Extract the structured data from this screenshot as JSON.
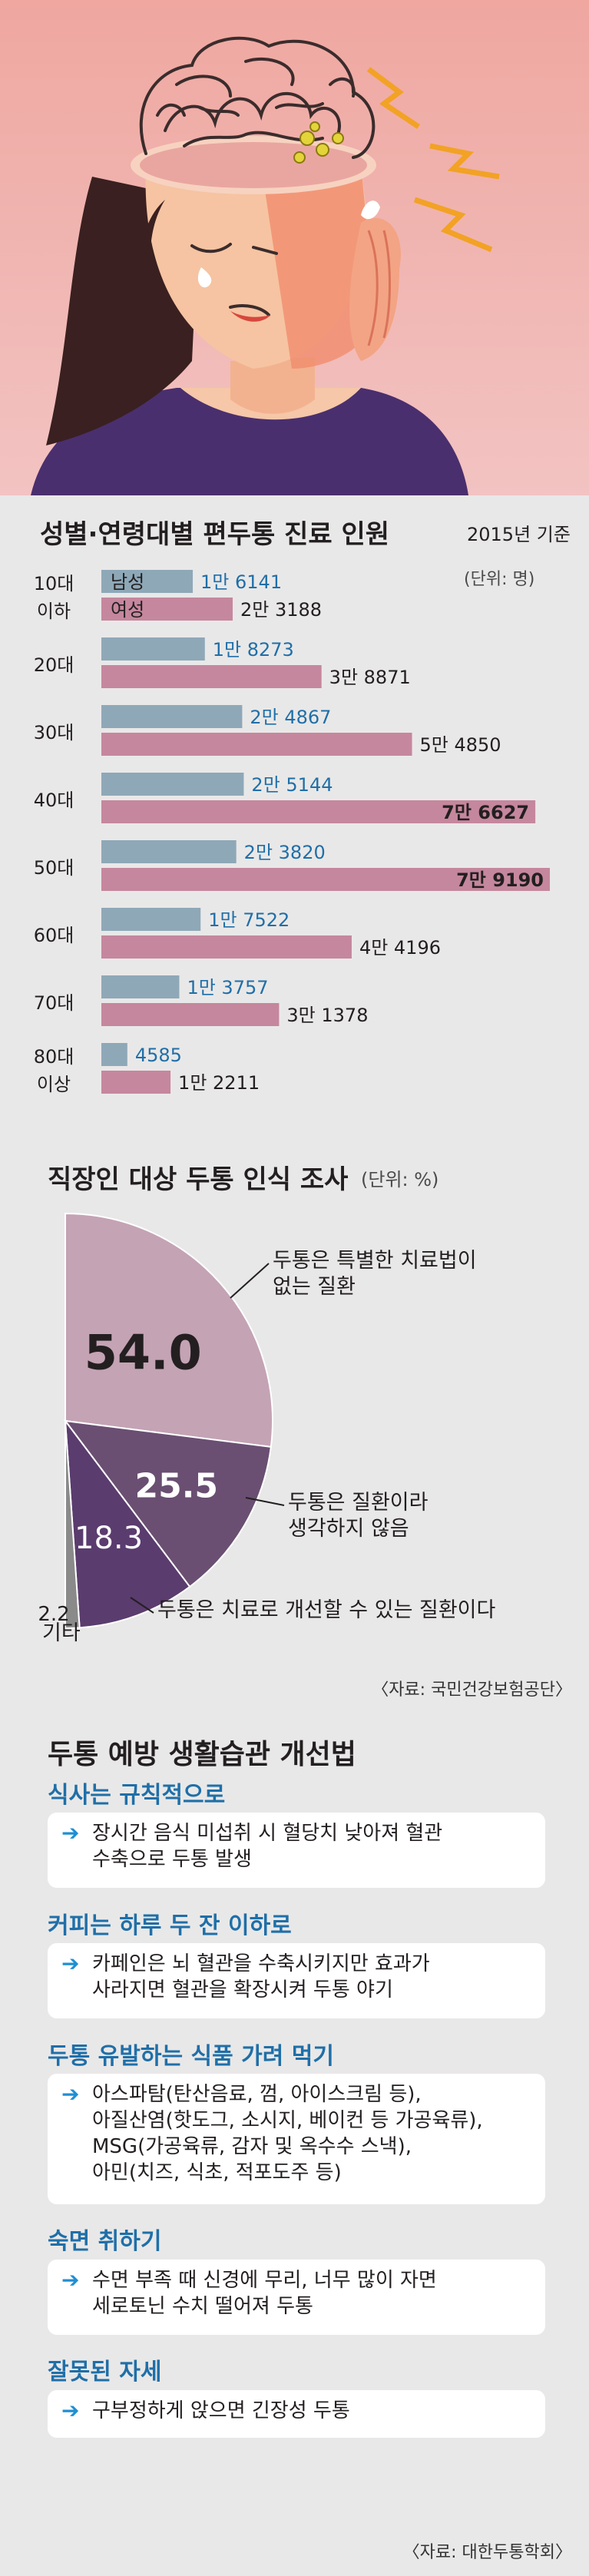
{
  "chart_data": [
    {
      "type": "bar",
      "title": "성별·연령대별 편두통 진료 인원",
      "subtitle": "2015년 기준",
      "unit": "(단위: 명)",
      "categories": [
        "10대 이하",
        "20대",
        "30대",
        "40대",
        "50대",
        "60대",
        "70대",
        "80대 이상"
      ],
      "series": [
        {
          "name": "남성",
          "values": [
            16141,
            18273,
            24867,
            25144,
            23820,
            17522,
            13757,
            4585
          ],
          "labels": [
            "1만 6141",
            "1만 8273",
            "2만 4867",
            "2만 5144",
            "2만 3820",
            "1만 7522",
            "1만 3757",
            "4585"
          ]
        },
        {
          "name": "여성",
          "values": [
            23188,
            38871,
            54850,
            76627,
            79190,
            44196,
            31378,
            12211
          ],
          "labels": [
            "2만 3188",
            "3만 8871",
            "5만 4850",
            "7만 6627",
            "7만 9190",
            "4만 4196",
            "3만 1378",
            "1만 2211"
          ]
        }
      ],
      "xlim": [
        0,
        80000
      ]
    },
    {
      "type": "pie",
      "title": "직장인 대상 두통 인식 조사",
      "unit": "(단위: %)",
      "slices": [
        {
          "value": 54.0,
          "label": "54.0",
          "desc": "두통은 특별한 치료법이\n없는 질환"
        },
        {
          "value": 25.5,
          "label": "25.5",
          "desc": "두통은 질환이라\n생각하지 않음"
        },
        {
          "value": 18.3,
          "label": "18.3",
          "desc": "두통은 치료로 개선할 수 있는 질환이다"
        },
        {
          "value": 2.2,
          "label": "2.2",
          "desc": "기타"
        }
      ],
      "source": "〈자료: 국민건강보험공단〉"
    }
  ],
  "colors": {
    "male": "#8ea8b8",
    "female": "#c5879d",
    "male_text": "#1f6fa8",
    "pie": [
      "#c4a3b4",
      "#6a4f72",
      "#5a3c6e",
      "#8a8a8a"
    ],
    "accent_blue": "#1f6fa8"
  },
  "tips": {
    "title": "두통 예방 생활습관 개선법",
    "items": [
      {
        "head": "식사는 규칙적으로",
        "text": "장시간 음식 미섭취 시 혈당치 낮아져 혈관\n수축으로 두통 발생"
      },
      {
        "head": "커피는 하루 두 잔 이하로",
        "text": "카페인은 뇌 혈관을 수축시키지만 효과가\n사라지면 혈관을 확장시켜 두통 야기"
      },
      {
        "head": "두통 유발하는 식품 가려 먹기",
        "text": "아스파탐(탄산음료, 껌, 아이스크림 등),\n아질산염(핫도그, 소시지, 베이컨 등 가공육류),\nMSG(가공육류, 감자 및 옥수수 스낵),\n아민(치즈, 식초, 적포도주 등)"
      },
      {
        "head": "숙면 취하기",
        "text": "수면 부족 때 신경에 무리, 너무 많이 자면\n세로토닌 수치 떨어져 두통"
      },
      {
        "head": "잘못된 자세",
        "text": "구부정하게 앉으면 긴장성 두통"
      }
    ],
    "source": "〈자료: 대한두통학회〉"
  }
}
